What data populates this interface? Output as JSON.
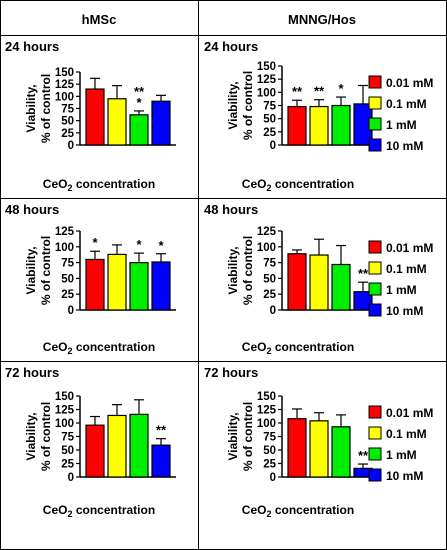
{
  "headers": {
    "left": "hMSc",
    "right": "MNNG/Hos"
  },
  "legend": [
    {
      "label": "0.01 mM",
      "color": "#ff0000"
    },
    {
      "label": "0.1 mM",
      "color": "#ffff00"
    },
    {
      "label": "1 mM",
      "color": "#00ee00"
    },
    {
      "label": "10 mM",
      "color": "#0000ff"
    }
  ],
  "chart_data": [
    {
      "type": "bar",
      "panel": "hMSc",
      "title": "24 hours",
      "ylabel": "Viability, % of control",
      "xlabel": "CeO₂ concentration",
      "ylim": [
        0,
        150
      ],
      "yticks": [
        0,
        25,
        50,
        75,
        100,
        125,
        150
      ],
      "categories": [
        "0.01 mM",
        "0.1 mM",
        "1 mM",
        "10 mM"
      ],
      "values": [
        115,
        95,
        62,
        90
      ],
      "errors": [
        22,
        27,
        8,
        12
      ],
      "significance": [
        "",
        "",
        "**\n*",
        ""
      ]
    },
    {
      "type": "bar",
      "panel": "MNNG/Hos",
      "title": "24 hours",
      "ylabel": "Viability, % of control",
      "xlabel": "CeO₂ concentration",
      "ylim": [
        0,
        150
      ],
      "yticks": [
        0,
        25,
        50,
        75,
        100,
        125,
        150
      ],
      "categories": [
        "0.01 mM",
        "0.1 mM",
        "1 mM",
        "10 mM"
      ],
      "values": [
        73,
        73,
        75,
        78
      ],
      "errors": [
        12,
        13,
        16,
        35
      ],
      "significance": [
        "**",
        "**",
        "*",
        ""
      ]
    },
    {
      "type": "bar",
      "panel": "hMSc",
      "title": "48 hours",
      "ylabel": "Viability, % of control",
      "xlabel": "CeO₂ concentration",
      "ylim": [
        0,
        125
      ],
      "yticks": [
        0,
        25,
        50,
        75,
        100,
        125
      ],
      "categories": [
        "0.01 mM",
        "0.1 mM",
        "1 mM",
        "10 mM"
      ],
      "values": [
        80,
        88,
        75,
        76
      ],
      "errors": [
        13,
        15,
        15,
        13
      ],
      "significance": [
        "*",
        "",
        "*",
        "*"
      ]
    },
    {
      "type": "bar",
      "panel": "MNNG/Hos",
      "title": "48 hours",
      "ylabel": "Viability, % of control",
      "xlabel": "CeO₂ concentration",
      "ylim": [
        0,
        125
      ],
      "yticks": [
        0,
        25,
        50,
        75,
        100,
        125
      ],
      "categories": [
        "0.01 mM",
        "0.1 mM",
        "1 mM",
        "10 mM"
      ],
      "values": [
        89,
        87,
        72,
        29
      ],
      "errors": [
        6,
        25,
        30,
        15
      ],
      "significance": [
        "",
        "",
        "",
        "**"
      ]
    },
    {
      "type": "bar",
      "panel": "hMSc",
      "title": "72 hours",
      "ylabel": "Viability, % of control",
      "xlabel": "CeO₂ concentration",
      "ylim": [
        0,
        150
      ],
      "yticks": [
        0,
        25,
        50,
        75,
        100,
        125,
        150
      ],
      "categories": [
        "0.01 mM",
        "0.1 mM",
        "1 mM",
        "10 mM"
      ],
      "values": [
        96,
        114,
        116,
        59
      ],
      "errors": [
        16,
        20,
        27,
        12
      ],
      "significance": [
        "",
        "",
        "",
        "**"
      ]
    },
    {
      "type": "bar",
      "panel": "MNNG/Hos",
      "title": "72 hours",
      "ylabel": "Viability, % of control",
      "xlabel": "CeO₂ concentration",
      "ylim": [
        0,
        150
      ],
      "yticks": [
        0,
        25,
        50,
        75,
        100,
        125,
        150
      ],
      "categories": [
        "0.01 mM",
        "0.1 mM",
        "1 mM",
        "10 mM"
      ],
      "values": [
        108,
        104,
        93,
        16
      ],
      "errors": [
        18,
        15,
        22,
        8
      ],
      "significance": [
        "",
        "",
        "",
        "**"
      ]
    }
  ]
}
